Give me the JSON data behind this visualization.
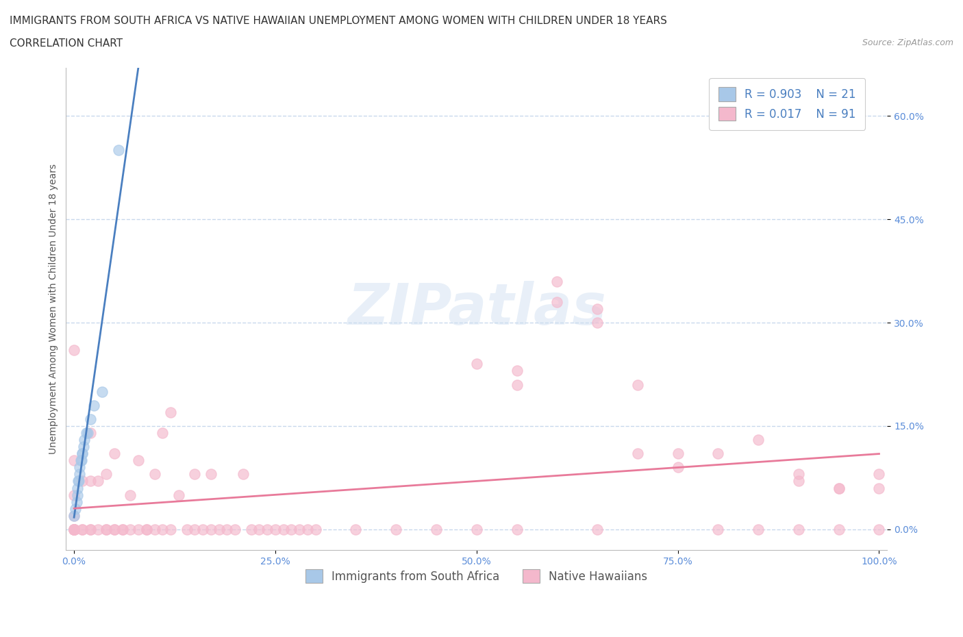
{
  "title_line1": "IMMIGRANTS FROM SOUTH AFRICA VS NATIVE HAWAIIAN UNEMPLOYMENT AMONG WOMEN WITH CHILDREN UNDER 18 YEARS",
  "title_line2": "CORRELATION CHART",
  "source_text": "Source: ZipAtlas.com",
  "ylabel": "Unemployment Among Women with Children Under 18 years",
  "xlim": [
    -0.01,
    1.01
  ],
  "ylim": [
    -0.03,
    0.67
  ],
  "xtick_vals": [
    0.0,
    0.25,
    0.5,
    0.75,
    1.0
  ],
  "xtick_labels": [
    "0.0%",
    "25.0%",
    "50.0%",
    "75.0%",
    "100.0%"
  ],
  "ytick_vals": [
    0.0,
    0.15,
    0.3,
    0.45,
    0.6
  ],
  "ytick_labels": [
    "0.0%",
    "15.0%",
    "30.0%",
    "45.0%",
    "60.0%"
  ],
  "watermark": "ZIPatlas",
  "legend_blue_label": "Immigrants from South Africa",
  "legend_pink_label": "Native Hawaiians",
  "blue_R": "0.903",
  "blue_N": "21",
  "pink_R": "0.017",
  "pink_N": "91",
  "blue_color": "#a8c8e8",
  "pink_color": "#f4b8cc",
  "blue_line_color": "#4a7fc0",
  "pink_line_color": "#e87a9a",
  "background_color": "#ffffff",
  "grid_color": "#c8d8ec",
  "blue_scatter_x": [
    0.0,
    0.002,
    0.003,
    0.004,
    0.004,
    0.005,
    0.006,
    0.007,
    0.007,
    0.008,
    0.009,
    0.01,
    0.01,
    0.012,
    0.013,
    0.015,
    0.017,
    0.02,
    0.025,
    0.035,
    0.055
  ],
  "blue_scatter_y": [
    0.02,
    0.03,
    0.04,
    0.05,
    0.06,
    0.07,
    0.07,
    0.08,
    0.09,
    0.1,
    0.1,
    0.11,
    0.11,
    0.12,
    0.13,
    0.14,
    0.14,
    0.16,
    0.18,
    0.2,
    0.55
  ],
  "pink_scatter_x": [
    0.0,
    0.0,
    0.0,
    0.0,
    0.0,
    0.0,
    0.0,
    0.0,
    0.0,
    0.0,
    0.0,
    0.01,
    0.01,
    0.01,
    0.02,
    0.02,
    0.02,
    0.02,
    0.03,
    0.03,
    0.04,
    0.04,
    0.04,
    0.05,
    0.05,
    0.05,
    0.06,
    0.06,
    0.07,
    0.07,
    0.08,
    0.08,
    0.09,
    0.09,
    0.1,
    0.1,
    0.11,
    0.11,
    0.12,
    0.12,
    0.13,
    0.14,
    0.15,
    0.15,
    0.16,
    0.17,
    0.17,
    0.18,
    0.19,
    0.2,
    0.21,
    0.22,
    0.23,
    0.24,
    0.25,
    0.26,
    0.27,
    0.28,
    0.29,
    0.3,
    0.35,
    0.4,
    0.45,
    0.5,
    0.55,
    0.55,
    0.6,
    0.65,
    0.65,
    0.7,
    0.75,
    0.8,
    0.85,
    0.9,
    0.9,
    0.95,
    0.95,
    1.0,
    1.0,
    0.5,
    0.55,
    0.6,
    0.65,
    0.7,
    0.75,
    0.8,
    0.85,
    0.9,
    0.95,
    1.0,
    0.0
  ],
  "pink_scatter_y": [
    0.0,
    0.0,
    0.0,
    0.0,
    0.0,
    0.0,
    0.0,
    0.02,
    0.05,
    0.1,
    0.26,
    0.0,
    0.0,
    0.07,
    0.0,
    0.0,
    0.07,
    0.14,
    0.0,
    0.07,
    0.0,
    0.0,
    0.08,
    0.0,
    0.0,
    0.11,
    0.0,
    0.0,
    0.0,
    0.05,
    0.0,
    0.1,
    0.0,
    0.0,
    0.0,
    0.08,
    0.0,
    0.14,
    0.0,
    0.17,
    0.05,
    0.0,
    0.0,
    0.08,
    0.0,
    0.0,
    0.08,
    0.0,
    0.0,
    0.0,
    0.08,
    0.0,
    0.0,
    0.0,
    0.0,
    0.0,
    0.0,
    0.0,
    0.0,
    0.0,
    0.0,
    0.0,
    0.0,
    0.0,
    0.21,
    0.0,
    0.36,
    0.3,
    0.0,
    0.21,
    0.11,
    0.0,
    0.0,
    0.07,
    0.0,
    0.06,
    0.0,
    0.08,
    0.0,
    0.24,
    0.23,
    0.33,
    0.32,
    0.11,
    0.09,
    0.11,
    0.13,
    0.08,
    0.06,
    0.06,
    0.0
  ],
  "title_fontsize": 11,
  "subtitle_fontsize": 11,
  "source_fontsize": 9,
  "ylabel_fontsize": 10,
  "tick_fontsize": 10,
  "legend_fontsize": 12
}
